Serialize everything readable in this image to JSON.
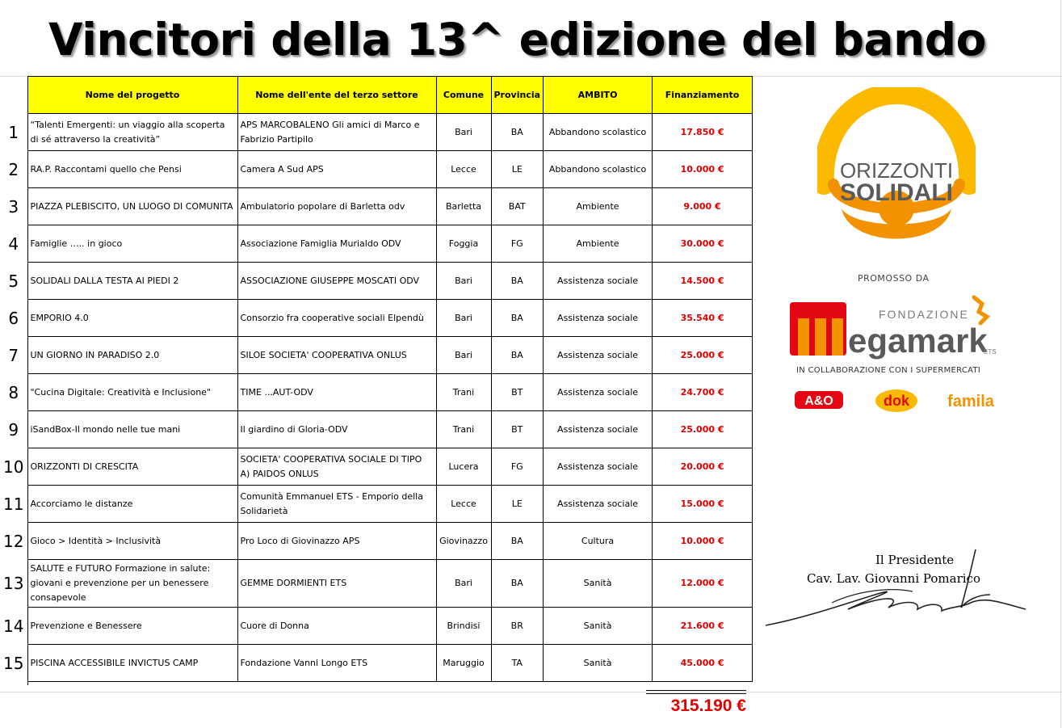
{
  "title": "Vincitori della 13^ edizione del bando",
  "headers": {
    "progetto": "Nome del progetto",
    "ente": "Nome dell'ente del terzo settore",
    "comune": "Comune",
    "provincia": "Provincia",
    "ambito": "AMBITO",
    "finanziamento": "Finanziamento"
  },
  "rows": [
    {
      "n": "1",
      "progetto": "“Talenti Emergenti: un viaggio alla scoperta di sé attraverso la creatività”",
      "ente": "APS MARCOBALENO Gli amici di Marco e Fabrizio Partipilo",
      "comune": "Bari",
      "provincia": "BA",
      "ambito": "Abbandono scolastico",
      "finanziamento": "17.850 €"
    },
    {
      "n": "2",
      "progetto": "RA.P. Raccontami quello che Pensi",
      "ente": "Camera A Sud APS",
      "comune": "Lecce",
      "provincia": "LE",
      "ambito": "Abbandono scolastico",
      "finanziamento": "10.000 €"
    },
    {
      "n": "3",
      "progetto": "PIAZZA PLEBISCITO, UN LUOGO DI COMUNITA",
      "ente": "Ambulatorio popolare di Barletta odv",
      "comune": "Barletta",
      "provincia": "BAT",
      "ambito": "Ambiente",
      "finanziamento": "9.000 €"
    },
    {
      "n": "4",
      "progetto": "Famiglie ….. in gioco",
      "ente": "Associazione Famiglia Murialdo ODV",
      "comune": "Foggia",
      "provincia": "FG",
      "ambito": "Ambiente",
      "finanziamento": "30.000 €"
    },
    {
      "n": "5",
      "progetto": "SOLIDALI DALLA TESTA AI PIEDI 2",
      "ente": "ASSOCIAZIONE GIUSEPPE MOSCATI ODV",
      "comune": "Bari",
      "provincia": "BA",
      "ambito": "Assistenza sociale",
      "finanziamento": "14.500 €"
    },
    {
      "n": "6",
      "progetto": "EMPORIO 4.0",
      "ente": "Consorzio fra cooperative sociali Elpendù",
      "comune": "Bari",
      "provincia": "BA",
      "ambito": "Assistenza sociale",
      "finanziamento": "35.540 €"
    },
    {
      "n": "7",
      "progetto": "UN GIORNO IN PARADISO 2.0",
      "ente": "SILOE SOCIETA' COOPERATIVA ONLUS",
      "comune": "Bari",
      "provincia": "BA",
      "ambito": "Assistenza sociale",
      "finanziamento": "25.000 €"
    },
    {
      "n": "8",
      "progetto": "\"Cucina Digitale: Creatività e Inclusione\"",
      "ente": "TIME ...AUT-ODV",
      "comune": "Trani",
      "provincia": "BT",
      "ambito": "Assistenza sociale",
      "finanziamento": "24.700 €"
    },
    {
      "n": "9",
      "progetto": "iSandBox-Il mondo nelle tue mani",
      "ente": "Il giardino di Gloria-ODV",
      "comune": "Trani",
      "provincia": "BT",
      "ambito": "Assistenza sociale",
      "finanziamento": "25.000 €"
    },
    {
      "n": "10",
      "progetto": "ORIZZONTI DI CRESCITA",
      "ente": "SOCIETA' COOPERATIVA SOCIALE DI TIPO A) PAIDOS ONLUS",
      "comune": "Lucera",
      "provincia": "FG",
      "ambito": "Assistenza sociale",
      "finanziamento": "20.000 €"
    },
    {
      "n": "11",
      "progetto": "Accorciamo le distanze",
      "ente": "Comunità Emmanuel ETS - Emporio della Solidarietà",
      "comune": "Lecce",
      "provincia": "LE",
      "ambito": "Assistenza sociale",
      "finanziamento": "15.000 €"
    },
    {
      "n": "12",
      "progetto": "Gioco > Identità > Inclusività",
      "ente": "Pro Loco di Giovinazzo APS",
      "comune": "Giovinazzo",
      "provincia": "BA",
      "ambito": "Cultura",
      "finanziamento": "10.000 €"
    },
    {
      "n": "13",
      "progetto": "SALUTE e FUTURO Formazione in salute: giovani e prevenzione per un benessere consapevole",
      "ente": "GEMME DORMIENTI ETS",
      "comune": "Bari",
      "provincia": "BA",
      "ambito": "Sanità",
      "finanziamento": "12.000 €"
    },
    {
      "n": "14",
      "progetto": "Prevenzione e Benessere",
      "ente": "Cuore di Donna",
      "comune": "Brindisi",
      "provincia": "BR",
      "ambito": "Sanità",
      "finanziamento": "21.600 €"
    },
    {
      "n": "15",
      "progetto": "PISCINA ACCESSIBILE INVICTUS CAMP",
      "ente": "Fondazione Vanni Longo ETS",
      "comune": "Maruggio",
      "provincia": "TA",
      "ambito": "Sanità",
      "finanziamento": "45.000 €"
    }
  ],
  "total": "315.190 €",
  "logo": {
    "line1": "ORIZZONTI",
    "line2": "SOLIDALI",
    "promosso": "PROMOSSO DA",
    "fondazione": "FONDAZIONE",
    "megamark": "egamark",
    "ets": "ETS",
    "collab": "IN COLLABORAZIONE CON I SUPERMERCATI",
    "sponsor1": "A&O",
    "sponsor2": "dok",
    "sponsor3": "famila",
    "logo_orange": "#f39200",
    "logo_yellow": "#fbb900",
    "logo_gray": "#5a5a5a",
    "megamark_red": "#e30613"
  },
  "signature": {
    "title": "Il Presidente",
    "name": "Cav. Lav. Giovanni Pomarico"
  }
}
